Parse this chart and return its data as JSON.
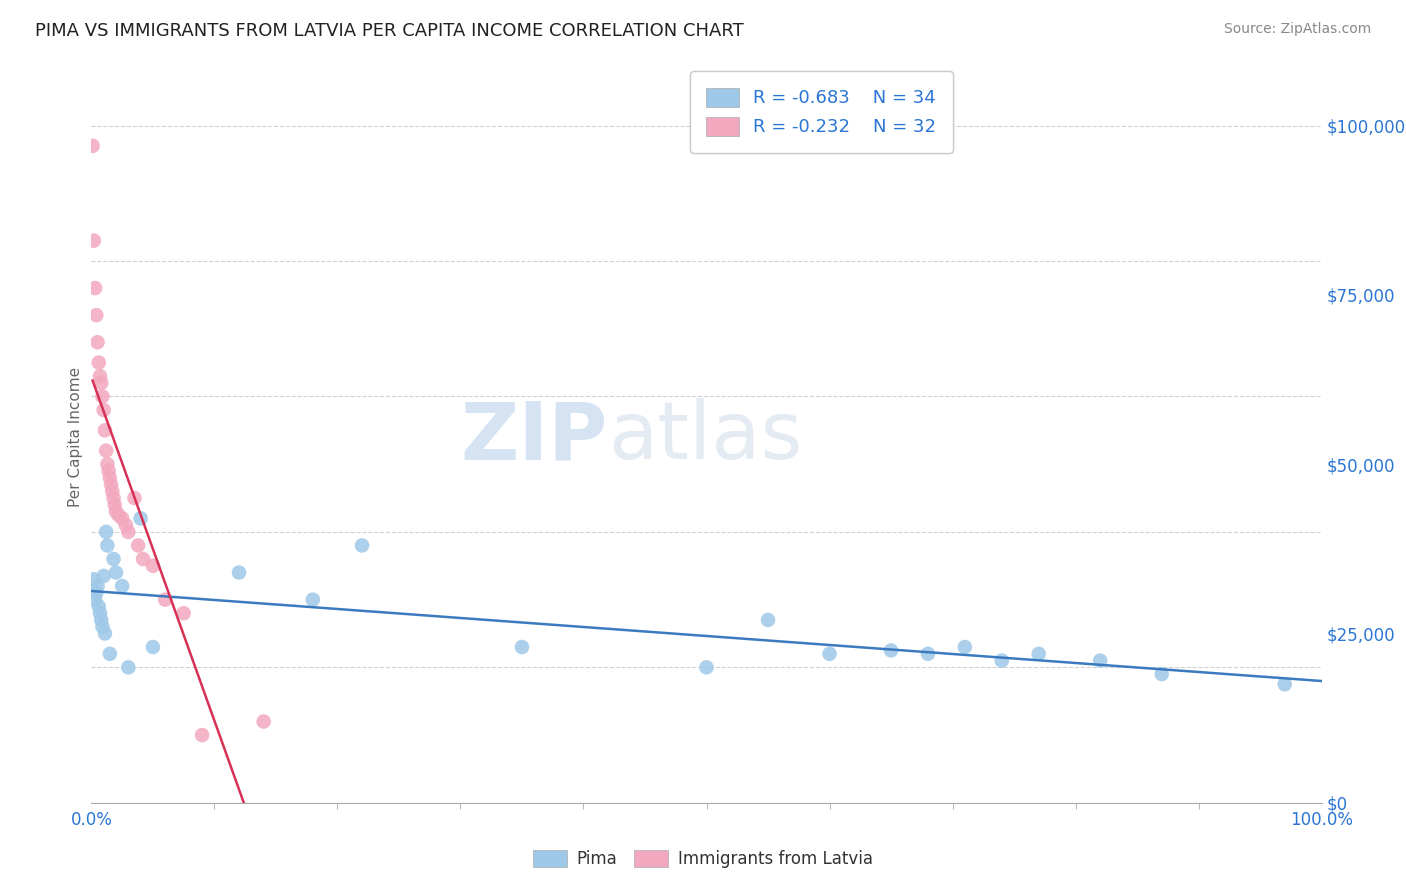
{
  "title": "PIMA VS IMMIGRANTS FROM LATVIA PER CAPITA INCOME CORRELATION CHART",
  "source": "Source: ZipAtlas.com",
  "ylabel": "Per Capita Income",
  "xlim": [
    0,
    1.0
  ],
  "ylim": [
    0,
    108000
  ],
  "background_color": "#ffffff",
  "watermark_zip": "ZIP",
  "watermark_atlas": "atlas",
  "pima": {
    "label": "Pima",
    "color": "#9ec8e8",
    "line_color": "#3c7abf",
    "R": -0.683,
    "N": 34,
    "x": [
      0.002,
      0.003,
      0.004,
      0.005,
      0.006,
      0.007,
      0.008,
      0.009,
      0.01,
      0.011,
      0.012,
      0.013,
      0.015,
      0.018,
      0.02,
      0.025,
      0.03,
      0.04,
      0.05,
      0.12,
      0.18,
      0.22,
      0.35,
      0.5,
      0.55,
      0.6,
      0.65,
      0.68,
      0.71,
      0.74,
      0.77,
      0.82,
      0.87,
      0.97
    ],
    "y": [
      33000,
      30000,
      31000,
      32000,
      29000,
      28000,
      27000,
      26000,
      33500,
      25000,
      40000,
      38000,
      22000,
      36000,
      34000,
      32000,
      20000,
      42000,
      23000,
      34000,
      30000,
      38000,
      23000,
      20000,
      27000,
      22000,
      22500,
      22000,
      23000,
      21000,
      22000,
      21000,
      19000,
      17500
    ]
  },
  "latvia": {
    "label": "Immigrants from Latvia",
    "color": "#f2a8be",
    "line_color": "#d63055",
    "R": -0.232,
    "N": 32,
    "x": [
      0.001,
      0.002,
      0.003,
      0.004,
      0.005,
      0.006,
      0.007,
      0.008,
      0.009,
      0.01,
      0.011,
      0.012,
      0.013,
      0.014,
      0.015,
      0.016,
      0.017,
      0.018,
      0.019,
      0.02,
      0.022,
      0.025,
      0.028,
      0.03,
      0.035,
      0.038,
      0.042,
      0.05,
      0.06,
      0.075,
      0.09,
      0.14
    ],
    "y": [
      97000,
      83000,
      76000,
      72000,
      68000,
      65000,
      63000,
      62000,
      60000,
      58000,
      55000,
      52000,
      50000,
      49000,
      48000,
      47000,
      46000,
      45000,
      44000,
      43000,
      42500,
      42000,
      41000,
      40000,
      45000,
      38000,
      36000,
      35000,
      30000,
      28000,
      10000,
      12000
    ]
  },
  "yticks": [
    0,
    25000,
    50000,
    75000,
    100000
  ],
  "ytick_labels_right": [
    "$0",
    "$25,000",
    "$50,000",
    "$75,000",
    "$100,000"
  ],
  "xtick_minor_count": 9,
  "grid_color": "#d0d0d0",
  "title_color": "#222222",
  "source_color": "#888888",
  "axis_label_color": "#666666",
  "tick_label_color_right": "#2b75d4",
  "tick_label_color_bottom": "#2b75d4",
  "legend_R_color": "#2b75d4",
  "bottom_label_color": "#333333"
}
